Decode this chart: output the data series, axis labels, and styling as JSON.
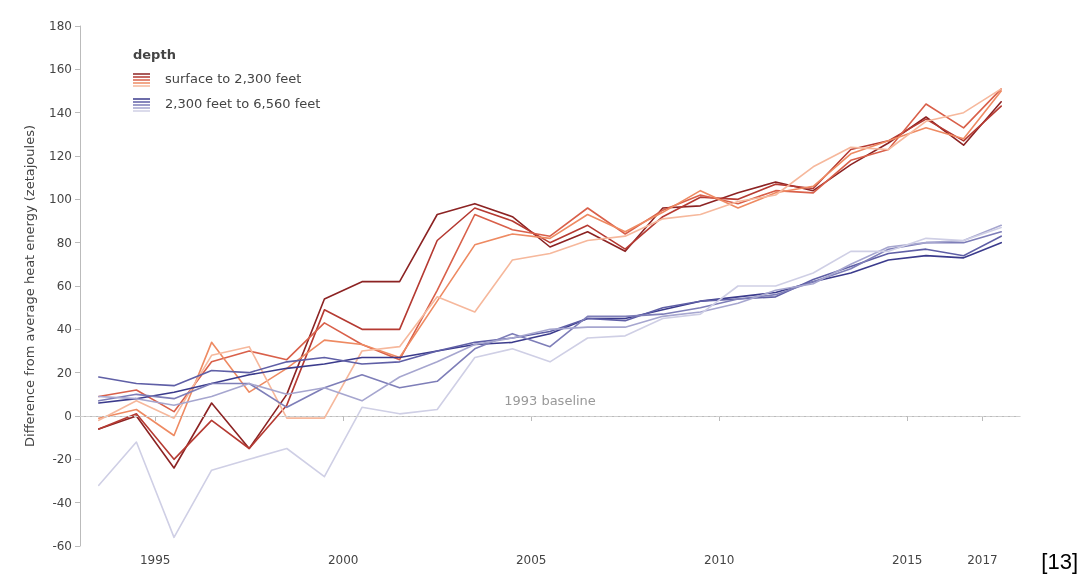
{
  "chart_data": {
    "type": "line",
    "ylabel": "Difference from average heat energy (zetajoules)",
    "legend_title": "depth",
    "legend": "top left",
    "grid": false,
    "marker": "none",
    "line_style": "solid",
    "x": [
      1993.5,
      1994.5,
      1995.5,
      1996.5,
      1997.5,
      1998.5,
      1999.5,
      2000.5,
      2001.5,
      2002.5,
      2003.5,
      2004.5,
      2005.5,
      2006.5,
      2007.5,
      2008.5,
      2009.5,
      2010.5,
      2011.5,
      2012.5,
      2013.5,
      2014.5,
      2015.5,
      2016.5,
      2017.5
    ],
    "xlim": [
      1993,
      2018
    ],
    "xticks": [
      1995,
      2000,
      2005,
      2010,
      2015,
      2017
    ],
    "ylim": [
      -60,
      180
    ],
    "yticks": [
      -60,
      -40,
      -20,
      0,
      20,
      40,
      60,
      80,
      100,
      120,
      140,
      160,
      180
    ],
    "series": [
      {
        "name": "surface to 2,300 feet",
        "color": "#8c2323",
        "values": [
          -6,
          0,
          -24,
          6,
          -15,
          10,
          54,
          62,
          62,
          93,
          98,
          92,
          78,
          85,
          76,
          96,
          97,
          103,
          108,
          104,
          116,
          126,
          138,
          125,
          145
        ]
      },
      {
        "color": "#b53a32",
        "values": [
          -6,
          1,
          -20,
          -2,
          -15,
          5,
          49,
          40,
          40,
          81,
          96,
          90,
          80,
          88,
          77,
          92,
          101,
          100,
          107,
          105,
          123,
          127,
          137,
          127,
          143
        ]
      },
      {
        "color": "#d9604a",
        "values": [
          9,
          12,
          2,
          25,
          30,
          26,
          43,
          33,
          26,
          58,
          93,
          86,
          83,
          96,
          84,
          95,
          102,
          98,
          104,
          103,
          118,
          123,
          144,
          133,
          151
        ]
      },
      {
        "color": "#ee8a62",
        "values": [
          -1,
          3,
          -9,
          34,
          11,
          22,
          35,
          33,
          27,
          53,
          79,
          84,
          82,
          93,
          85,
          94,
          104,
          96,
          103,
          106,
          121,
          127,
          133,
          128,
          150
        ]
      },
      {
        "color": "#f6b89c",
        "values": [
          -2,
          7,
          -1,
          28,
          32,
          -1,
          -1,
          30,
          32,
          55,
          48,
          72,
          75,
          81,
          83,
          91,
          93,
          99,
          102,
          115,
          124,
          123,
          136,
          140,
          151
        ]
      },
      {
        "name": "2,300 feet to 6,560 feet",
        "color": "#3b3b8c",
        "values": [
          6,
          8,
          11,
          15,
          19,
          22,
          24,
          27,
          27,
          30,
          33,
          34,
          38,
          45,
          45,
          49,
          53,
          55,
          57,
          62,
          66,
          72,
          74,
          73,
          80
        ]
      },
      {
        "color": "#5f5fa6",
        "values": [
          18,
          15,
          14,
          21,
          20,
          25,
          27,
          24,
          25,
          30,
          34,
          36,
          39,
          45,
          44,
          50,
          53,
          54,
          55,
          63,
          69,
          75,
          77,
          74,
          83
        ]
      },
      {
        "color": "#7e7eb8",
        "values": [
          7,
          10,
          8,
          15,
          15,
          4,
          13,
          19,
          13,
          16,
          31,
          38,
          32,
          46,
          46,
          47,
          50,
          54,
          56,
          62,
          68,
          77,
          80,
          80,
          85
        ]
      },
      {
        "color": "#a6a6cf",
        "values": [
          9,
          8,
          5,
          9,
          15,
          10,
          13,
          7,
          18,
          25,
          33,
          36,
          40,
          41,
          41,
          46,
          48,
          52,
          58,
          61,
          70,
          78,
          80,
          81,
          88
        ]
      },
      {
        "color": "#cfcfe5",
        "values": [
          -32,
          -12,
          -56,
          -25,
          -20,
          -15,
          -28,
          4,
          1,
          3,
          27,
          31,
          25,
          36,
          37,
          45,
          47,
          60,
          60,
          66,
          76,
          76,
          82,
          81,
          87
        ]
      }
    ],
    "ref_lines": [
      {
        "axis": "y",
        "value": 0,
        "label": "1993 baseline",
        "color": "#d0d0d0",
        "line_style": "dashed"
      }
    ],
    "annotations": [
      "[13]"
    ]
  }
}
